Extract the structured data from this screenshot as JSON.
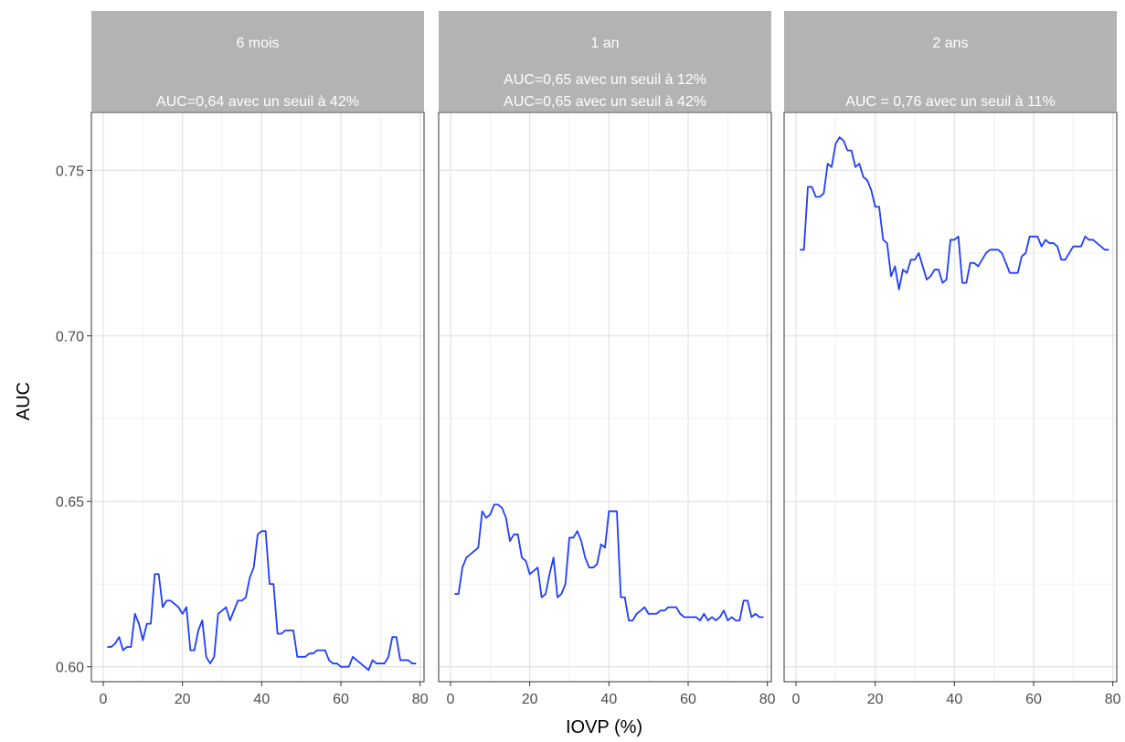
{
  "chart_data": {
    "type": "line",
    "xlabel": "IOVP (%)",
    "ylabel": "AUC",
    "xlim": [
      -3,
      81
    ],
    "ylim": [
      0.5955,
      0.7675
    ],
    "x_ticks": [
      0,
      20,
      40,
      60,
      80
    ],
    "x_tick_labels": [
      "0",
      "20",
      "40",
      "60",
      "80"
    ],
    "y_ticks": [
      0.6,
      0.65,
      0.7,
      0.75
    ],
    "y_tick_labels": [
      "0.60",
      "0.65",
      "0.70",
      "0.75"
    ],
    "grid": true,
    "line_color": "#1f3dff",
    "panels": [
      {
        "title_lines": [
          "6 mois",
          "",
          "AUC=0,64 avec un seuil à 42%"
        ],
        "x": [
          1,
          2,
          3,
          4,
          5,
          6,
          7,
          8,
          9,
          10,
          11,
          12,
          13,
          14,
          15,
          16,
          17,
          18,
          19,
          20,
          21,
          22,
          23,
          24,
          25,
          26,
          27,
          28,
          29,
          30,
          31,
          32,
          33,
          34,
          35,
          36,
          37,
          38,
          39,
          40,
          41,
          42,
          43,
          44,
          45,
          46,
          47,
          48,
          49,
          50,
          51,
          52,
          53,
          54,
          55,
          56,
          57,
          58,
          59,
          60,
          61,
          62,
          63,
          64,
          65,
          66,
          67,
          68,
          69,
          70,
          71,
          72,
          73,
          74,
          75,
          76,
          77,
          78,
          79
        ],
        "y": [
          0.606,
          0.606,
          0.607,
          0.609,
          0.605,
          0.606,
          0.606,
          0.616,
          0.613,
          0.608,
          0.613,
          0.613,
          0.628,
          0.628,
          0.618,
          0.62,
          0.62,
          0.619,
          0.618,
          0.616,
          0.618,
          0.605,
          0.605,
          0.611,
          0.614,
          0.603,
          0.601,
          0.603,
          0.616,
          0.617,
          0.618,
          0.614,
          0.617,
          0.62,
          0.62,
          0.621,
          0.627,
          0.63,
          0.64,
          0.641,
          0.641,
          0.625,
          0.625,
          0.61,
          0.61,
          0.611,
          0.611,
          0.611,
          0.603,
          0.603,
          0.603,
          0.604,
          0.604,
          0.605,
          0.605,
          0.605,
          0.602,
          0.601,
          0.601,
          0.6,
          0.6,
          0.6,
          0.603,
          0.602,
          0.601,
          0.6,
          0.599,
          0.602,
          0.601,
          0.601,
          0.601,
          0.603,
          0.609,
          0.609,
          0.602,
          0.602,
          0.602,
          0.601,
          0.601
        ]
      },
      {
        "title_lines": [
          "1 an",
          "AUC=0,65 avec un seuil à 12%",
          "AUC=0,65 avec un seuil à 42%"
        ],
        "x": [
          1,
          2,
          3,
          4,
          5,
          6,
          7,
          8,
          9,
          10,
          11,
          12,
          13,
          14,
          15,
          16,
          17,
          18,
          19,
          20,
          21,
          22,
          23,
          24,
          25,
          26,
          27,
          28,
          29,
          30,
          31,
          32,
          33,
          34,
          35,
          36,
          37,
          38,
          39,
          40,
          41,
          42,
          43,
          44,
          45,
          46,
          47,
          48,
          49,
          50,
          51,
          52,
          53,
          54,
          55,
          56,
          57,
          58,
          59,
          60,
          61,
          62,
          63,
          64,
          65,
          66,
          67,
          68,
          69,
          70,
          71,
          72,
          73,
          74,
          75,
          76,
          77,
          78,
          79
        ],
        "y": [
          0.622,
          0.622,
          0.63,
          0.633,
          0.634,
          0.635,
          0.636,
          0.647,
          0.645,
          0.646,
          0.649,
          0.649,
          0.648,
          0.645,
          0.638,
          0.64,
          0.64,
          0.633,
          0.632,
          0.628,
          0.629,
          0.63,
          0.621,
          0.622,
          0.628,
          0.633,
          0.621,
          0.622,
          0.625,
          0.639,
          0.639,
          0.641,
          0.638,
          0.633,
          0.63,
          0.63,
          0.631,
          0.637,
          0.636,
          0.647,
          0.647,
          0.647,
          0.621,
          0.621,
          0.614,
          0.614,
          0.616,
          0.617,
          0.618,
          0.616,
          0.616,
          0.616,
          0.617,
          0.617,
          0.618,
          0.618,
          0.618,
          0.616,
          0.615,
          0.615,
          0.615,
          0.615,
          0.614,
          0.616,
          0.614,
          0.615,
          0.614,
          0.615,
          0.617,
          0.614,
          0.615,
          0.614,
          0.614,
          0.62,
          0.62,
          0.615,
          0.616,
          0.615,
          0.615
        ]
      },
      {
        "title_lines": [
          "2 ans",
          "",
          "AUC = 0,76 avec un seuil à  11%"
        ],
        "x": [
          1,
          2,
          3,
          4,
          5,
          6,
          7,
          8,
          9,
          10,
          11,
          12,
          13,
          14,
          15,
          16,
          17,
          18,
          19,
          20,
          21,
          22,
          23,
          24,
          25,
          26,
          27,
          28,
          29,
          30,
          31,
          32,
          33,
          34,
          35,
          36,
          37,
          38,
          39,
          40,
          41,
          42,
          43,
          44,
          45,
          46,
          47,
          48,
          49,
          50,
          51,
          52,
          53,
          54,
          55,
          56,
          57,
          58,
          59,
          60,
          61,
          62,
          63,
          64,
          65,
          66,
          67,
          68,
          69,
          70,
          71,
          72,
          73,
          74,
          75,
          76,
          77,
          78,
          79
        ],
        "y": [
          0.726,
          0.726,
          0.745,
          0.745,
          0.742,
          0.742,
          0.743,
          0.752,
          0.751,
          0.758,
          0.76,
          0.759,
          0.756,
          0.756,
          0.751,
          0.752,
          0.748,
          0.747,
          0.744,
          0.739,
          0.739,
          0.729,
          0.728,
          0.718,
          0.721,
          0.714,
          0.72,
          0.719,
          0.723,
          0.723,
          0.725,
          0.721,
          0.717,
          0.718,
          0.72,
          0.72,
          0.716,
          0.717,
          0.729,
          0.729,
          0.73,
          0.716,
          0.716,
          0.722,
          0.722,
          0.721,
          0.723,
          0.725,
          0.726,
          0.726,
          0.726,
          0.725,
          0.722,
          0.719,
          0.719,
          0.719,
          0.724,
          0.725,
          0.73,
          0.73,
          0.73,
          0.727,
          0.729,
          0.728,
          0.728,
          0.727,
          0.723,
          0.723,
          0.725,
          0.727,
          0.727,
          0.727,
          0.73,
          0.729,
          0.729,
          0.728,
          0.727,
          0.726,
          0.726
        ]
      }
    ]
  }
}
